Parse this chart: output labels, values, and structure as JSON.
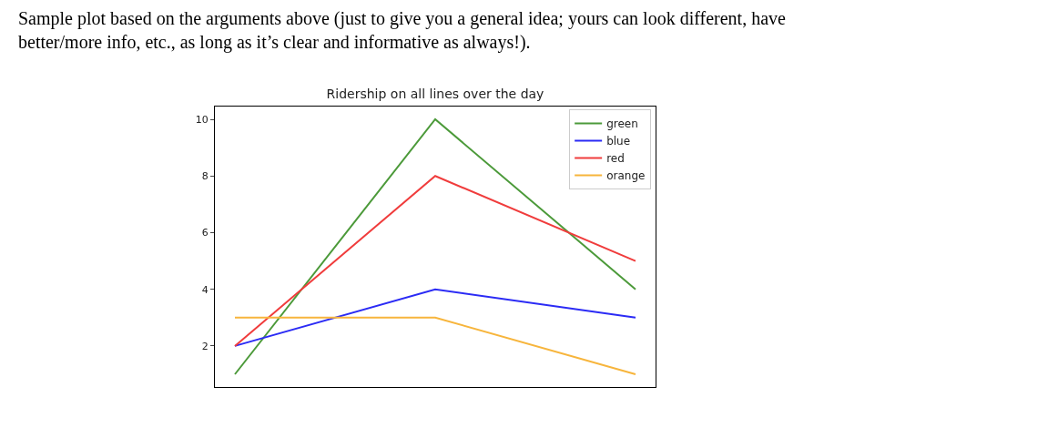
{
  "chart_data": {
    "type": "line",
    "title": "Ridership on all lines over the day",
    "annotations": [
      "Sample plot based on the arguments above (just to give you a general idea; yours can look different, have\nbetter/more info, etc., as long as it’s clear and informative as always!)."
    ],
    "categories": [
      null,
      null,
      null
    ],
    "series": [
      {
        "name": "green",
        "color": "#4c9a3a",
        "values": [
          1,
          10,
          4
        ]
      },
      {
        "name": "blue",
        "color": "#2b2bf5",
        "values": [
          2,
          4,
          3
        ]
      },
      {
        "name": "red",
        "color": "#f03c3c",
        "values": [
          2,
          8,
          5
        ]
      },
      {
        "name": "orange",
        "color": "#f7b53c",
        "values": [
          3,
          3,
          1
        ]
      }
    ],
    "ylim": [
      0.55,
      10.45
    ],
    "yticks": [
      2,
      4,
      6,
      8,
      10
    ],
    "tick_labels": "y",
    "legend": "top right",
    "marker": "none",
    "line_style": "solid"
  }
}
